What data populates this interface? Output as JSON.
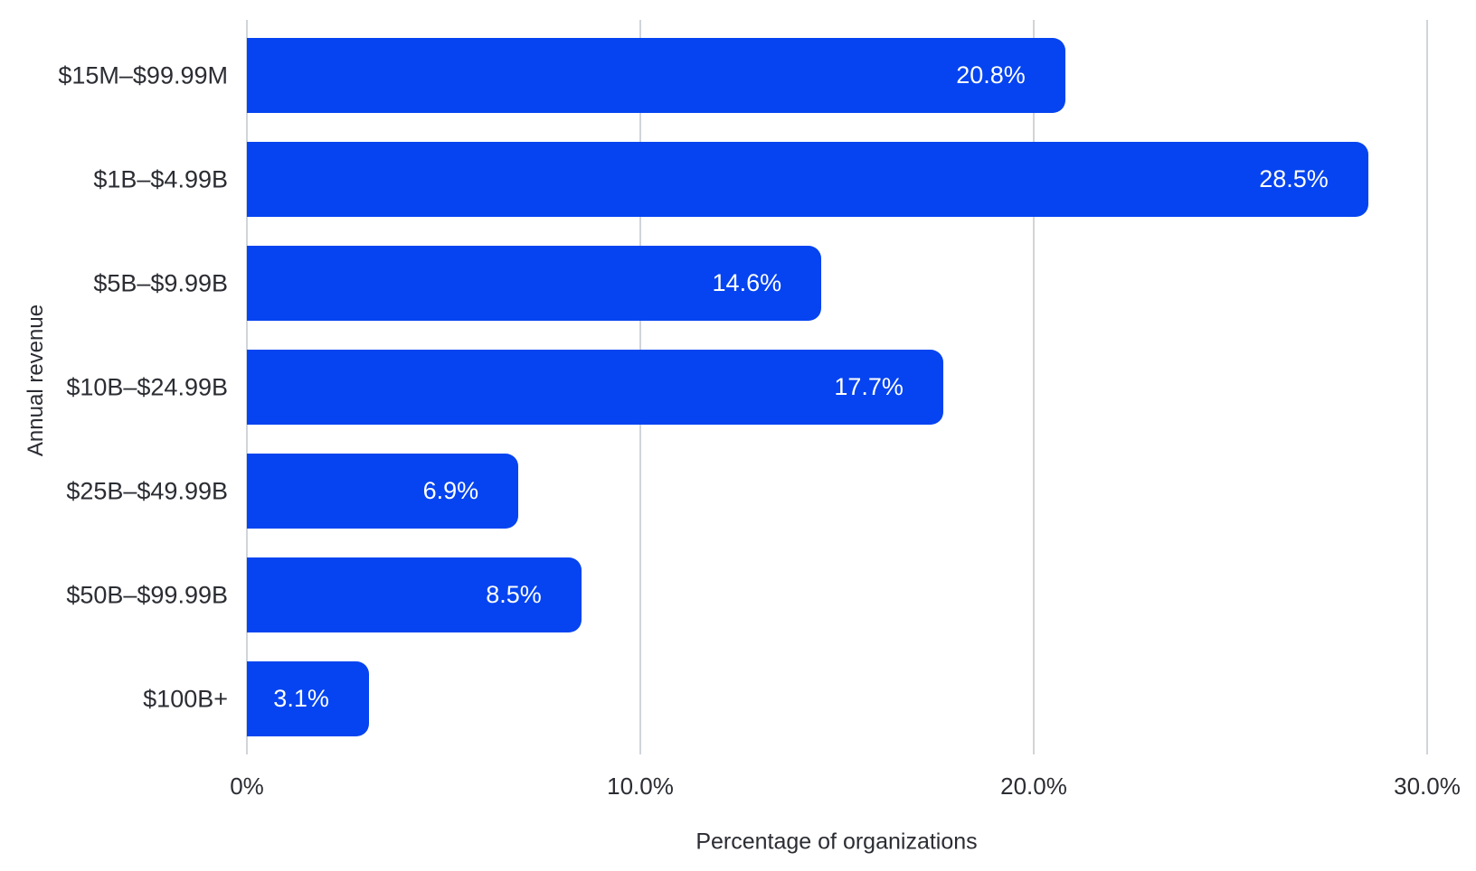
{
  "chart_data": {
    "type": "bar",
    "orientation": "horizontal",
    "title": "",
    "xlabel": "Percentage of organizations",
    "ylabel": "Annual revenue",
    "categories": [
      "$15M–$99.99M",
      "$1B–$4.99B",
      "$5B–$9.99B",
      "$10B–$24.99B",
      "$25B–$49.99B",
      "$50B–$99.99B",
      "$100B+"
    ],
    "values": [
      20.8,
      28.5,
      14.6,
      17.7,
      6.9,
      8.5,
      3.1
    ],
    "value_labels": [
      "20.8%",
      "28.5%",
      "14.6%",
      "17.7%",
      "6.9%",
      "8.5%",
      "3.1%"
    ],
    "x_ticks": [
      {
        "value": 0,
        "label": "0%"
      },
      {
        "value": 10,
        "label": "10.0%"
      },
      {
        "value": 20,
        "label": "20.0%"
      },
      {
        "value": 30,
        "label": "30.0%"
      }
    ],
    "xlim": [
      0,
      30
    ],
    "grid": "vertical-only",
    "legend": "none",
    "colors": {
      "bar": "#0544F0",
      "bar_label": "#FFFFFF",
      "axis_text": "#2B2D33",
      "gridline": "#D0D5DA",
      "background": "#FFFFFF"
    }
  }
}
